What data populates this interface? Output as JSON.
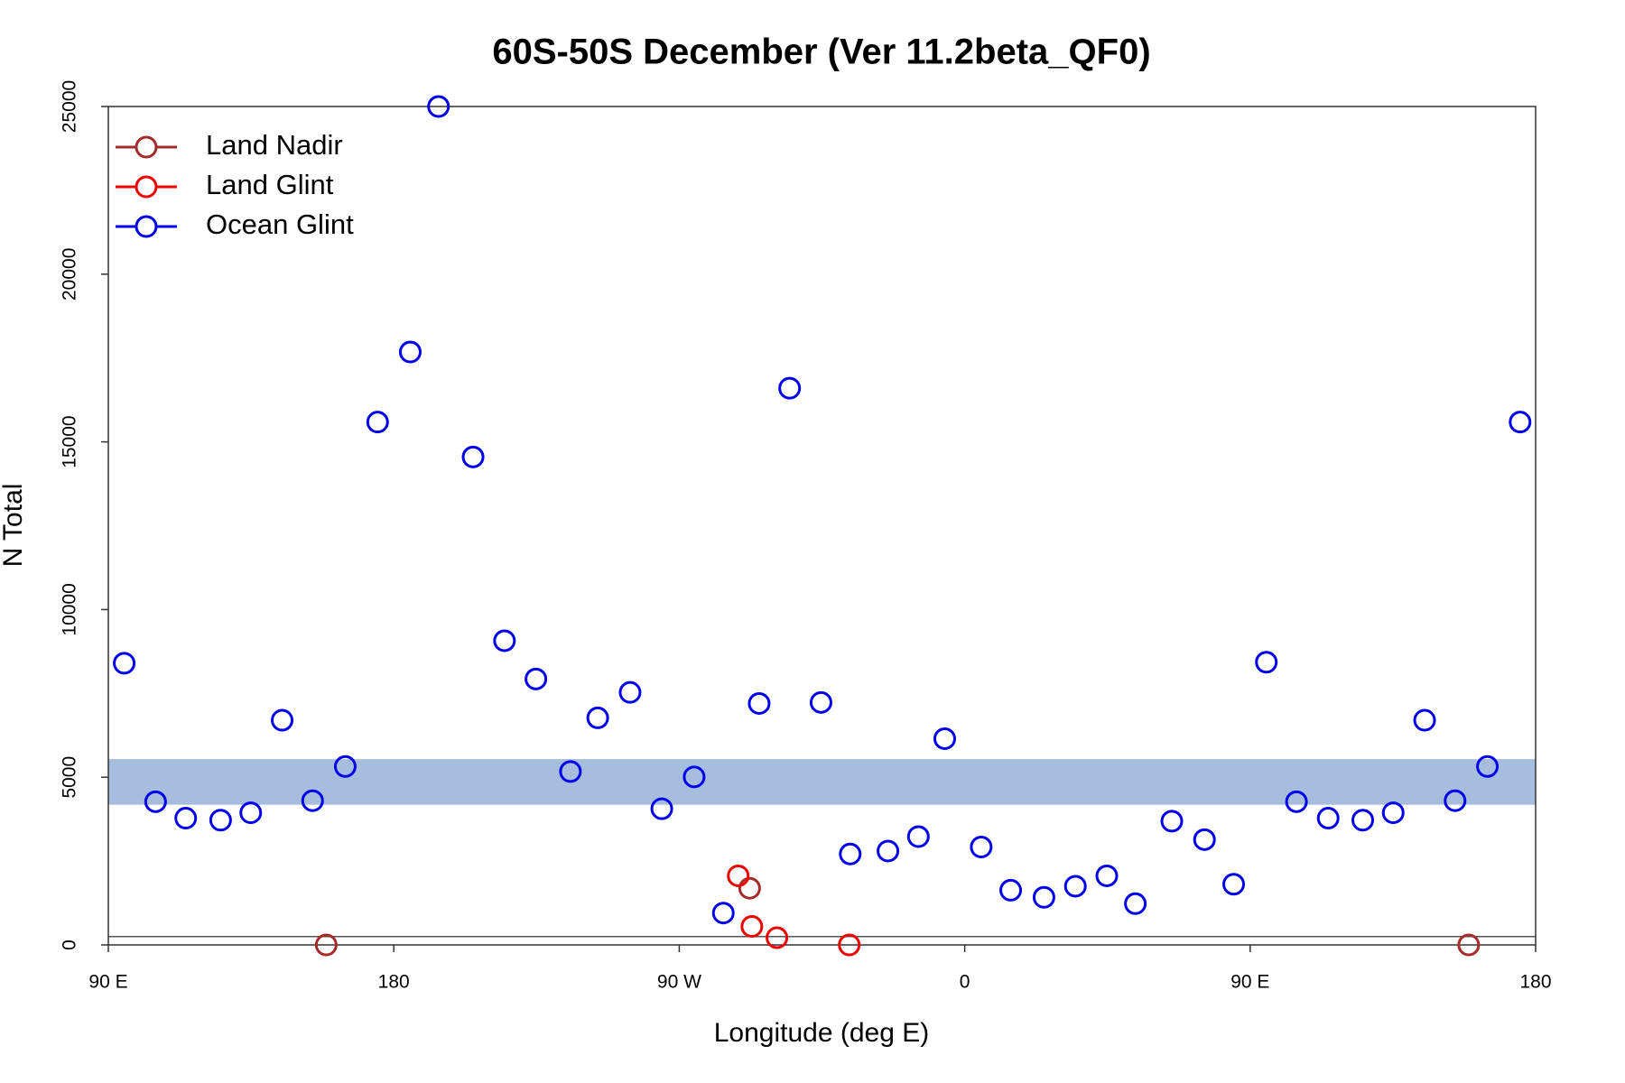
{
  "chart_data": {
    "type": "scatter",
    "title": "60S-50S December (Ver 11.2beta_QF0)",
    "x_label": "Longitude (deg E)",
    "y_label": "N Total",
    "xlim": [
      90,
      540
    ],
    "ylim": [
      0,
      25000
    ],
    "xticks": [
      {
        "value": 90,
        "label": "90 E"
      },
      180,
      {
        "value": 270,
        "label": "90 W"
      },
      {
        "value": 360,
        "label": "0"
      },
      {
        "value": 450,
        "label": "90 E"
      },
      {
        "value": 540,
        "label": "180"
      }
    ],
    "yticks": [
      0,
      5000,
      10000,
      15000,
      20000,
      25000
    ],
    "band": [
      4180,
      5540
    ],
    "band_color": "#a7bddd",
    "reference_line": 250,
    "legend": "top-left",
    "series": [
      {
        "name": "Land Nadir",
        "color": "#a52a2a",
        "x": [
          158.7,
          292.2,
          518.9
        ],
        "values": [
          0,
          1690,
          0
        ]
      },
      {
        "name": "Land Glint",
        "color": "#ee0000",
        "x": [
          288.6,
          292.9,
          300.8,
          323.6
        ],
        "values": [
          2060,
          550,
          215,
          0
        ]
      },
      {
        "name": "Ocean Glint",
        "color": "#0000ee",
        "x": [
          95.0,
          104.9,
          114.4,
          125.4,
          134.9,
          144.8,
          154.4,
          164.7,
          174.9,
          185.2,
          194.1,
          205.0,
          214.9,
          224.8,
          235.7,
          244.3,
          254.5,
          264.5,
          274.7,
          283.9,
          295.2,
          304.8,
          314.7,
          323.9,
          335.8,
          345.4,
          353.7,
          365.2,
          374.5,
          385.0,
          394.9,
          404.8,
          413.8,
          425.3,
          435.6,
          444.8,
          455.1,
          464.6,
          474.6,
          485.5,
          495.1,
          505.0,
          514.6,
          524.8,
          535.1
        ],
        "values": [
          8400,
          4270,
          3780,
          3720,
          3940,
          6700,
          4300,
          5320,
          15590,
          17680,
          25000,
          14550,
          9070,
          7930,
          5170,
          6770,
          7530,
          4060,
          5010,
          950,
          7200,
          16600,
          7230,
          2710,
          2800,
          3230,
          6150,
          2920,
          1630,
          1420,
          1750,
          2060,
          1230,
          3690,
          3140,
          1810,
          8430,
          4270,
          3780,
          3720,
          3940,
          6700,
          4300,
          5320,
          15590
        ]
      }
    ]
  }
}
